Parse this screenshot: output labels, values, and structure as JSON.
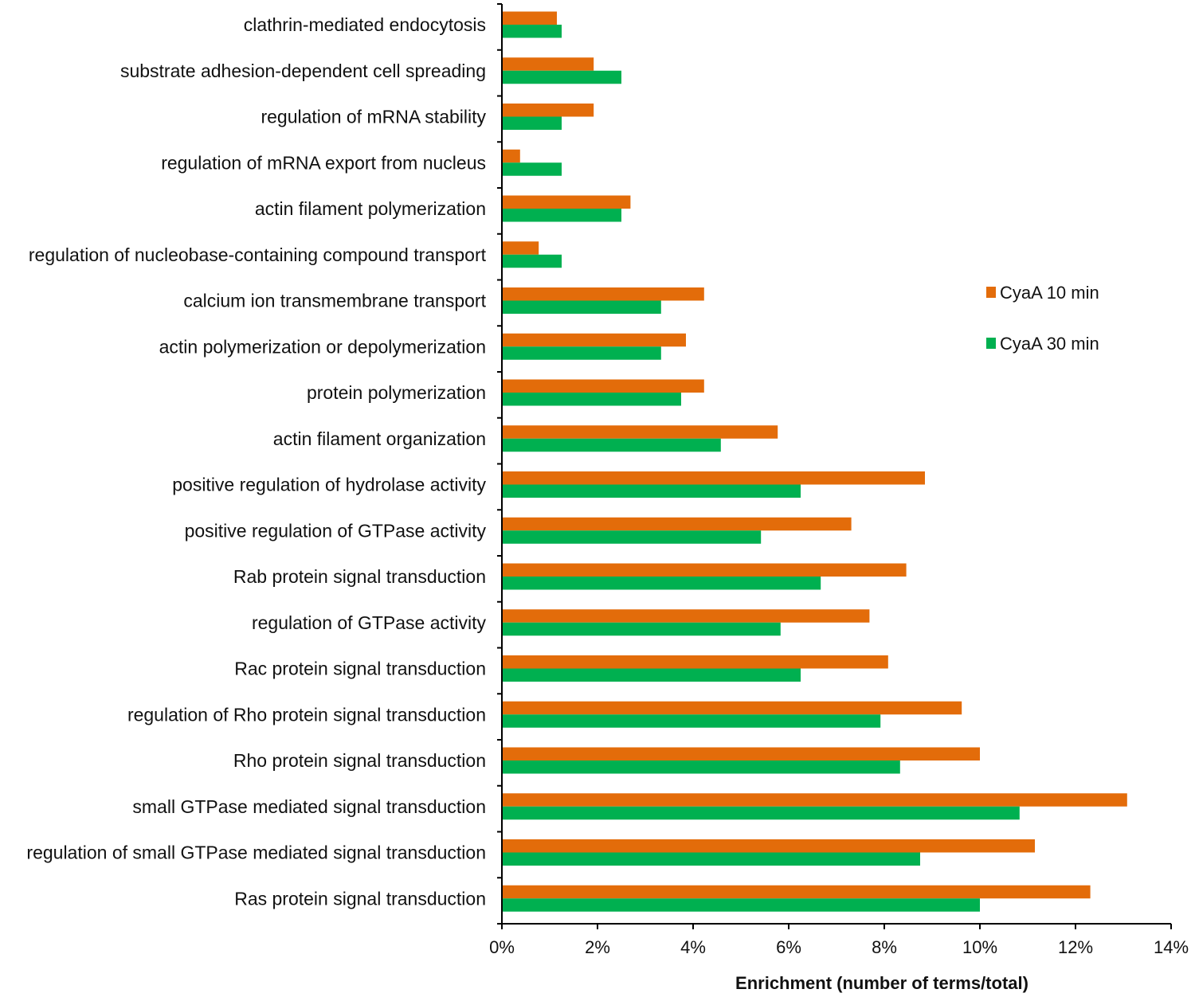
{
  "chart_data": {
    "type": "bar",
    "orientation": "horizontal",
    "categories": [
      "clathrin-mediated endocytosis",
      "substrate adhesion-dependent cell spreading",
      "regulation of mRNA stability",
      "regulation of mRNA export from nucleus",
      "actin filament polymerization",
      "regulation of nucleobase-containing compound transport",
      "calcium ion transmembrane transport",
      "actin polymerization or depolymerization",
      "protein polymerization",
      "actin filament organization",
      "positive regulation of hydrolase activity",
      "positive regulation of GTPase activity",
      "Rab protein signal transduction",
      "regulation of GTPase activity",
      "Rac protein signal transduction",
      "regulation of Rho protein signal transduction",
      "Rho protein signal transduction",
      "small GTPase mediated signal transduction",
      "regulation of small GTPase mediated signal transduction",
      "Ras protein signal transduction"
    ],
    "series": [
      {
        "name": "CyaA 10 min",
        "color": "#e36c0a",
        "values": [
          1.15,
          1.92,
          1.92,
          0.38,
          2.69,
          0.77,
          4.23,
          3.85,
          4.23,
          5.77,
          8.85,
          7.31,
          8.46,
          7.69,
          8.08,
          9.62,
          10.0,
          13.08,
          11.15,
          12.31
        ]
      },
      {
        "name": "CyaA 30 min",
        "color": "#00b050",
        "values": [
          1.25,
          2.5,
          1.25,
          1.25,
          2.5,
          1.25,
          3.33,
          3.33,
          3.75,
          4.58,
          6.25,
          5.42,
          6.67,
          5.83,
          6.25,
          7.92,
          8.33,
          10.83,
          8.75,
          10.0
        ]
      }
    ],
    "xlabel": "Enrichment (number of terms/total)",
    "ylabel": "",
    "xlim": [
      0,
      14
    ],
    "xticks": [
      "0%",
      "2%",
      "4%",
      "6%",
      "8%",
      "10%",
      "12%",
      "14%"
    ],
    "grid": false,
    "legend": "right"
  }
}
